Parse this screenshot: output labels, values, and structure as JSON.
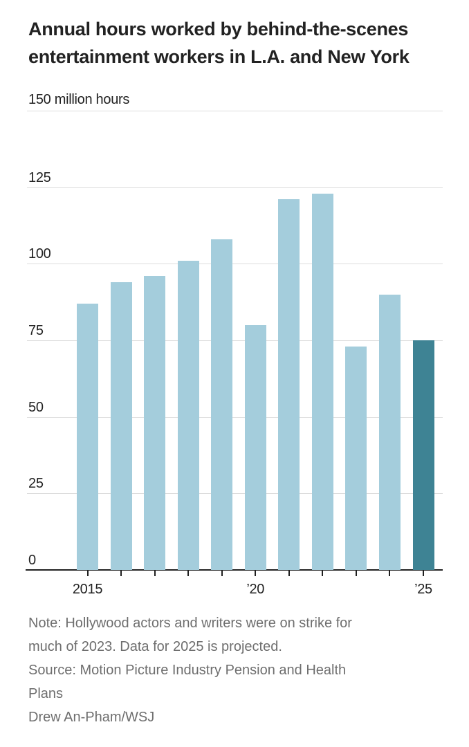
{
  "title": {
    "line1": "Annual hours worked by behind-the-scenes",
    "line2": "entertainment workers in L.A. and New York"
  },
  "chart_data": {
    "type": "bar",
    "title": "Annual hours worked by behind-the-scenes entertainment workers in L.A. and New York",
    "unit_label": "150 million hours",
    "ylabel": "million hours",
    "categories": [
      2015,
      2016,
      2017,
      2018,
      2019,
      2020,
      2021,
      2022,
      2023,
      2024,
      2025
    ],
    "values": [
      87,
      94,
      96,
      101,
      108,
      80,
      121,
      123,
      73,
      90,
      75
    ],
    "ylim": [
      0,
      150
    ],
    "ytick_step": 25,
    "grid": true,
    "xtick_labels": [
      {
        "index": 0,
        "label": "2015"
      },
      {
        "index": 5,
        "label": "’20"
      },
      {
        "index": 10,
        "label": "’25"
      }
    ],
    "highlight_index": 10,
    "colors": {
      "bar": "#a4cddc",
      "highlight_bar": "#3e8394",
      "gridline": "#dddddd",
      "axis": "#1f1f1f",
      "text": "#222222"
    }
  },
  "footer": {
    "note_lines": [
      "Note: Hollywood actors and writers were on strike for",
      "much of 2023. Data for 2025 is projected."
    ],
    "source_lines": [
      "Source: Motion Picture Industry Pension and Health",
      "Plans"
    ],
    "credit": "Drew An-Pham/WSJ"
  }
}
